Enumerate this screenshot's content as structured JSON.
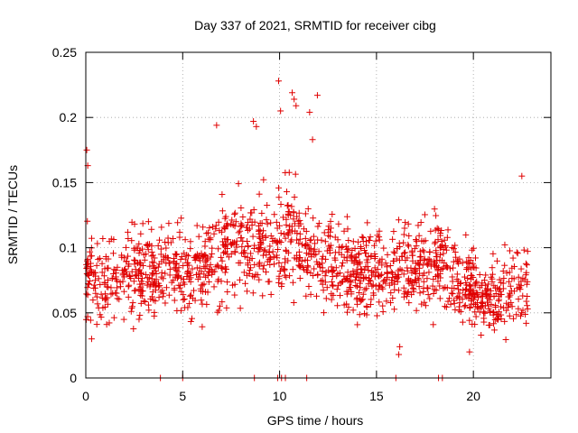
{
  "chart_data": {
    "type": "scatter",
    "title": "Day 337 of 2021, SRMTID for receiver cibg",
    "xlabel": "GPS time / hours",
    "ylabel": "SRMTID / TECUs",
    "xlim": [
      0,
      24
    ],
    "ylim": [
      0,
      0.25
    ],
    "x_ticks": [
      0,
      5,
      10,
      15,
      20
    ],
    "x_tick_labels": [
      "0",
      "5",
      "10",
      "15",
      "20"
    ],
    "y_ticks": [
      0,
      0.05,
      0.1,
      0.15,
      0.2,
      0.25
    ],
    "y_tick_labels": [
      "0",
      "0.05",
      "0.1",
      "0.15",
      "0.2",
      "0.25"
    ],
    "grid": true,
    "marker": "+",
    "series_color": "#e00000",
    "coverage_hours": [
      0,
      22.8
    ],
    "zero_value_times": [
      3.85,
      5.0,
      8.7,
      9.9,
      10.1,
      10.3,
      11.4,
      16.0,
      18.2,
      18.4
    ],
    "outliers": [
      {
        "x": 0.05,
        "y": 0.175
      },
      {
        "x": 0.1,
        "y": 0.163
      },
      {
        "x": 8.65,
        "y": 0.197
      },
      {
        "x": 8.8,
        "y": 0.193
      },
      {
        "x": 9.95,
        "y": 0.228
      },
      {
        "x": 10.05,
        "y": 0.205
      },
      {
        "x": 10.65,
        "y": 0.219
      },
      {
        "x": 10.75,
        "y": 0.214
      },
      {
        "x": 10.85,
        "y": 0.209
      },
      {
        "x": 11.55,
        "y": 0.204
      },
      {
        "x": 11.7,
        "y": 0.183
      },
      {
        "x": 11.95,
        "y": 0.217
      },
      {
        "x": 6.75,
        "y": 0.194
      },
      {
        "x": 0.3,
        "y": 0.03
      },
      {
        "x": 16.15,
        "y": 0.018
      },
      {
        "x": 16.2,
        "y": 0.024
      },
      {
        "x": 19.8,
        "y": 0.02
      },
      {
        "x": 22.5,
        "y": 0.155
      }
    ],
    "bulk_profile": [
      {
        "t": 0,
        "mean": 0.078,
        "spread": 0.03
      },
      {
        "t": 2,
        "mean": 0.074,
        "spread": 0.028
      },
      {
        "t": 4,
        "mean": 0.08,
        "spread": 0.03
      },
      {
        "t": 6,
        "mean": 0.082,
        "spread": 0.03
      },
      {
        "t": 7,
        "mean": 0.095,
        "spread": 0.035
      },
      {
        "t": 8.5,
        "mean": 0.1,
        "spread": 0.035
      },
      {
        "t": 9.5,
        "mean": 0.098,
        "spread": 0.035
      },
      {
        "t": 10.5,
        "mean": 0.11,
        "spread": 0.04
      },
      {
        "t": 11.5,
        "mean": 0.1,
        "spread": 0.04
      },
      {
        "t": 13,
        "mean": 0.085,
        "spread": 0.03
      },
      {
        "t": 15,
        "mean": 0.08,
        "spread": 0.03
      },
      {
        "t": 17,
        "mean": 0.088,
        "spread": 0.03
      },
      {
        "t": 19,
        "mean": 0.083,
        "spread": 0.03
      },
      {
        "t": 20.5,
        "mean": 0.06,
        "spread": 0.022
      },
      {
        "t": 21.5,
        "mean": 0.065,
        "spread": 0.025
      },
      {
        "t": 22.8,
        "mean": 0.072,
        "spread": 0.028
      }
    ],
    "bulk_point_count": 1500
  }
}
